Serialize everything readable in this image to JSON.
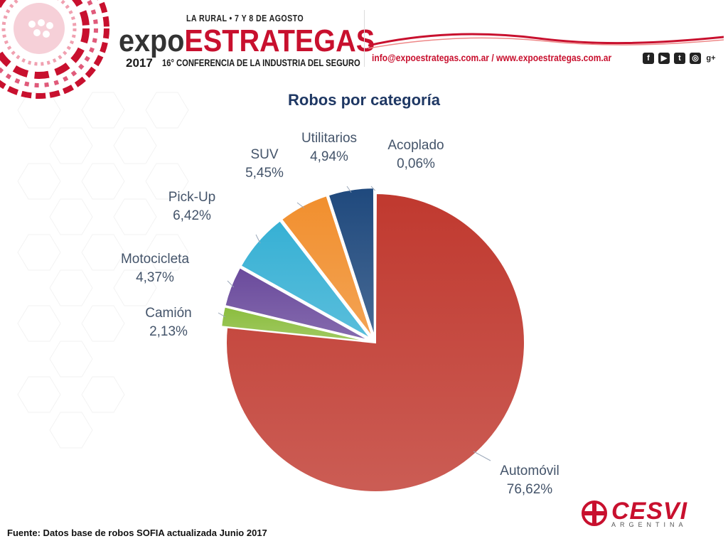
{
  "header": {
    "event_top": "LA RURAL • 7 Y 8 DE AGOSTO",
    "brand_part1": "expo",
    "brand_part2": "ESTRATEGAS",
    "year": "2017",
    "conference": "16° CONFERENCIA DE LA INDUSTRIA DEL SEGURO",
    "contact": "info@expoestrategas.com.ar / www.expoestrategas.com.ar",
    "social_icons": [
      "facebook-icon",
      "youtube-icon",
      "twitter-icon",
      "instagram-icon",
      "google-plus-icon"
    ]
  },
  "colors": {
    "brand_red": "#c8102e",
    "title_blue": "#1f3864",
    "label_text": "#44546a"
  },
  "chart_data": {
    "type": "pie",
    "title": "Robos por categoría",
    "slices": [
      {
        "label": "Automóvil",
        "value": 76.62,
        "value_text": "76,62%",
        "color": "#c0392f",
        "exploded": false
      },
      {
        "label": "Camión",
        "value": 2.13,
        "value_text": "2,13%",
        "color": "#8bbd3e",
        "exploded": true
      },
      {
        "label": "Motocicleta",
        "value": 4.37,
        "value_text": "4,37%",
        "color": "#6a4a9c",
        "exploded": true
      },
      {
        "label": "Pick-Up",
        "value": 6.42,
        "value_text": "6,42%",
        "color": "#36b0d4",
        "exploded": true
      },
      {
        "label": "SUV",
        "value": 5.45,
        "value_text": "5,45%",
        "color": "#f18f2e",
        "exploded": true
      },
      {
        "label": "Utilitarios",
        "value": 4.94,
        "value_text": "4,94%",
        "color": "#1f497d",
        "exploded": true
      },
      {
        "label": "Acoplado",
        "value": 0.06,
        "value_text": "0,06%",
        "color": "#4bacc6",
        "exploded": true
      }
    ]
  },
  "footer": {
    "source": "Fuente: Datos base de robos SOFIA actualizada Junio 2017",
    "logo_text": "CESVI",
    "logo_sub": "ARGENTINA"
  }
}
